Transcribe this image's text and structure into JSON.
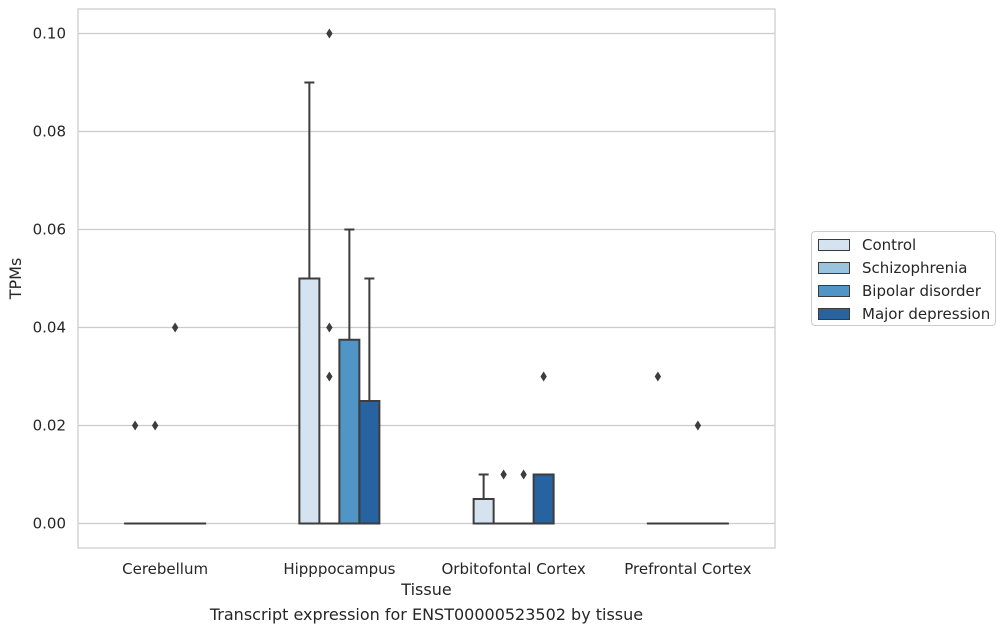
{
  "caption": "Transcript expression for ENST00000523502 by tissue",
  "chart_data": {
    "type": "box",
    "xlabel": "Tissue",
    "ylabel": "TPMs",
    "ylim": [
      -0.005,
      0.105
    ],
    "yticks": [
      0.0,
      0.02,
      0.04,
      0.06,
      0.08,
      0.1
    ],
    "ytick_labels": [
      "0.00",
      "0.02",
      "0.04",
      "0.06",
      "0.08",
      "0.10"
    ],
    "grid": "horizontal",
    "legend_position": "right",
    "categories": [
      "Cerebellum",
      "Hipppocampus",
      "Orbitofontal Cortex",
      "Prefrontal Cortex"
    ],
    "series": [
      {
        "name": "Control",
        "color": "#d5e3f1",
        "boxes": [
          {
            "q1": 0.0,
            "median": 0.0,
            "q3": 0.0,
            "whislo": 0.0,
            "whishi": 0.0,
            "fliers": [
              0.02
            ]
          },
          {
            "q1": 0.0,
            "median": 0.0,
            "q3": 0.05,
            "whislo": 0.0,
            "whishi": 0.09,
            "fliers": []
          },
          {
            "q1": 0.0,
            "median": 0.0,
            "q3": 0.005,
            "whislo": 0.0,
            "whishi": 0.01,
            "fliers": []
          },
          {
            "q1": 0.0,
            "median": 0.0,
            "q3": 0.0,
            "whislo": 0.0,
            "whishi": 0.0,
            "fliers": [
              0.03
            ]
          }
        ]
      },
      {
        "name": "Schizophrenia",
        "color": "#9ac3dd",
        "boxes": [
          {
            "q1": 0.0,
            "median": 0.0,
            "q3": 0.0,
            "whislo": 0.0,
            "whishi": 0.0,
            "fliers": [
              0.02
            ]
          },
          {
            "q1": 0.0,
            "median": 0.0,
            "q3": 0.0,
            "whislo": 0.0,
            "whishi": 0.0,
            "fliers": [
              0.03,
              0.04,
              0.1
            ]
          },
          {
            "q1": 0.0,
            "median": 0.0,
            "q3": 0.0,
            "whislo": 0.0,
            "whishi": 0.0,
            "fliers": [
              0.01
            ]
          },
          {
            "q1": 0.0,
            "median": 0.0,
            "q3": 0.0,
            "whislo": 0.0,
            "whishi": 0.0,
            "fliers": []
          }
        ]
      },
      {
        "name": "Bipolar disorder",
        "color": "#5195c6",
        "boxes": [
          {
            "q1": 0.0,
            "median": 0.0,
            "q3": 0.0,
            "whislo": 0.0,
            "whishi": 0.0,
            "fliers": [
              0.04
            ]
          },
          {
            "q1": 0.0,
            "median": 0.0,
            "q3": 0.0375,
            "whislo": 0.0,
            "whishi": 0.06,
            "fliers": []
          },
          {
            "q1": 0.0,
            "median": 0.0,
            "q3": 0.0,
            "whislo": 0.0,
            "whishi": 0.0,
            "fliers": [
              0.01
            ]
          },
          {
            "q1": 0.0,
            "median": 0.0,
            "q3": 0.0,
            "whislo": 0.0,
            "whishi": 0.0,
            "fliers": [
              0.02
            ]
          }
        ]
      },
      {
        "name": "Major depression",
        "color": "#2763a1",
        "boxes": [
          {
            "q1": 0.0,
            "median": 0.0,
            "q3": 0.0,
            "whislo": 0.0,
            "whishi": 0.0,
            "fliers": []
          },
          {
            "q1": 0.0,
            "median": 0.0,
            "q3": 0.025,
            "whislo": 0.0,
            "whishi": 0.05,
            "fliers": []
          },
          {
            "q1": 0.0,
            "median": 0.0,
            "q3": 0.01,
            "whislo": 0.0,
            "whishi": 0.01,
            "fliers": [
              0.03
            ]
          },
          {
            "q1": 0.0,
            "median": 0.0,
            "q3": 0.0,
            "whislo": 0.0,
            "whishi": 0.0,
            "fliers": []
          }
        ]
      }
    ]
  }
}
